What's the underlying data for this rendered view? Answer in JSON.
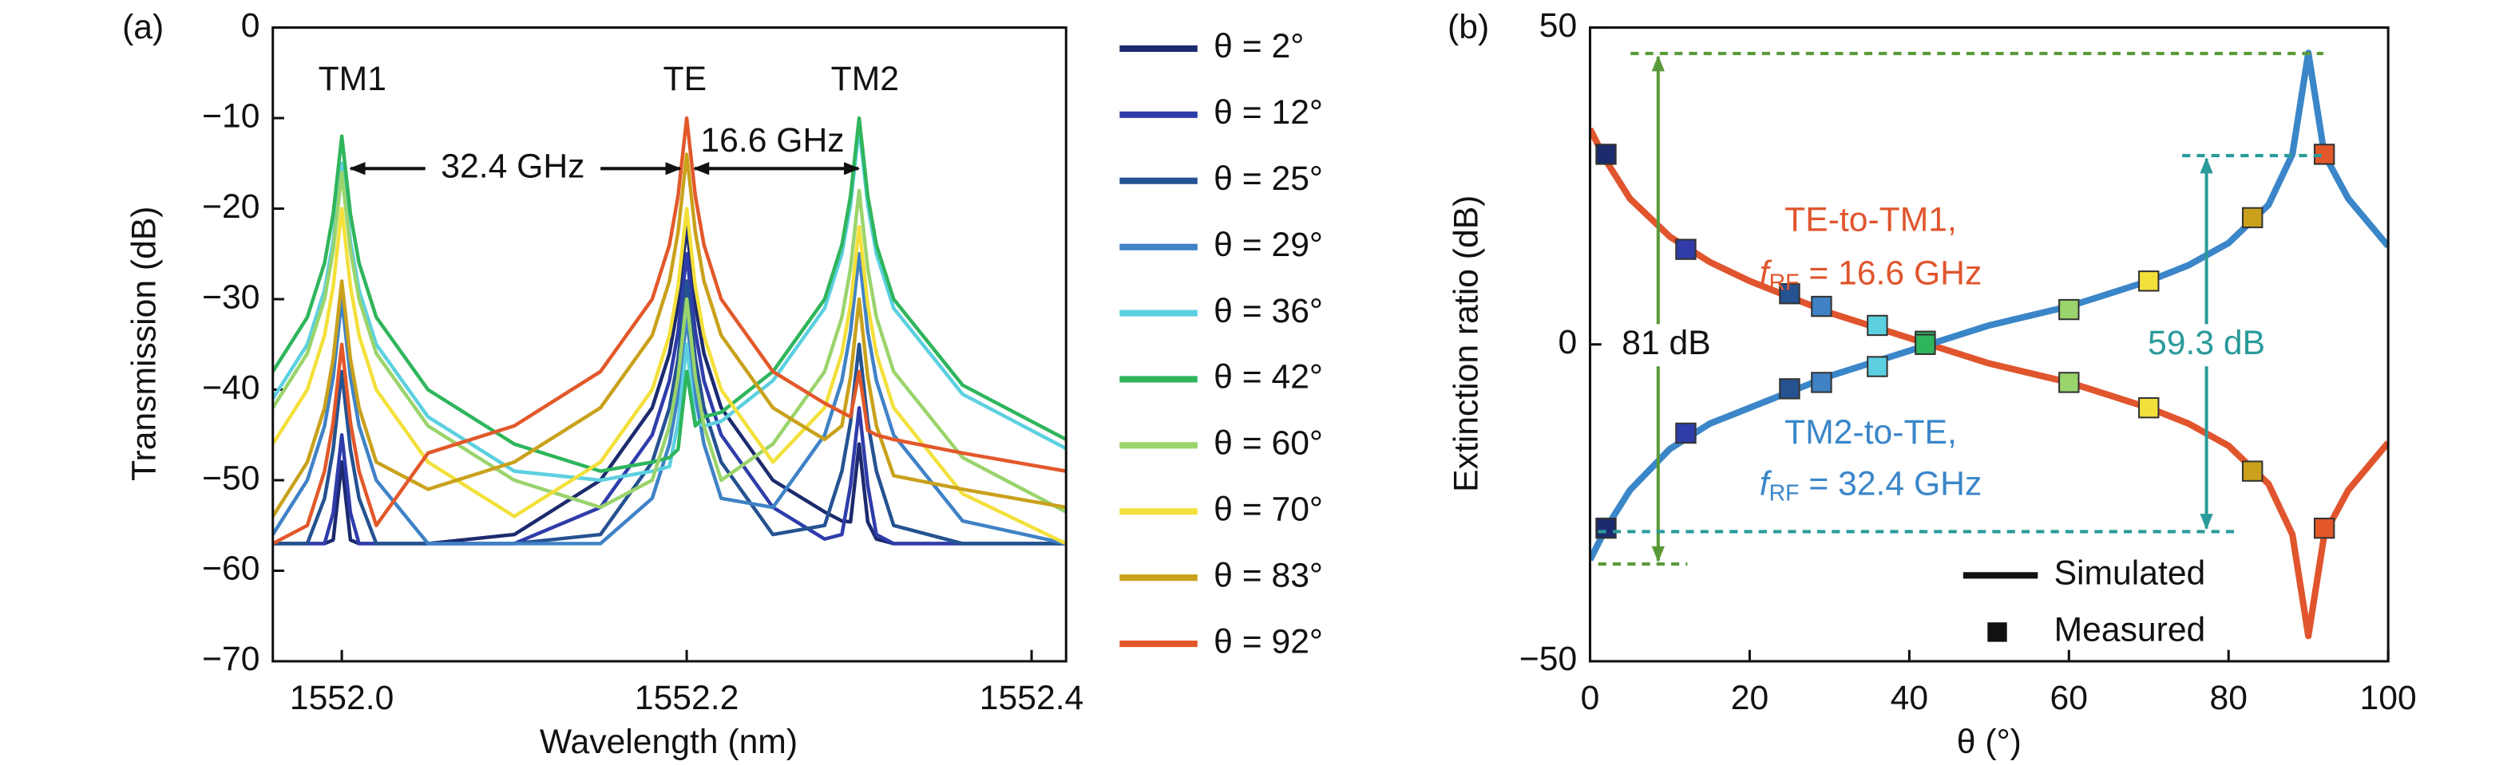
{
  "chart_data": [
    {
      "type": "line",
      "panel_label": "(a)",
      "x_label": "Wavelength (nm)",
      "y_label": "Transmission (dB)",
      "xlim": [
        1551.96,
        1552.42
      ],
      "ylim": [
        -70,
        0
      ],
      "xticks": [
        {
          "value": 1552,
          "label": "1552.0"
        },
        1552.2,
        1552.4
      ],
      "yticks": [
        0,
        {
          "value": -10,
          "label": "−10"
        },
        {
          "value": -20,
          "label": "−20"
        },
        {
          "value": -30,
          "label": "−30"
        },
        {
          "value": -40,
          "label": "−40"
        },
        {
          "value": -50,
          "label": "−50"
        },
        {
          "value": -60,
          "label": "−60"
        },
        {
          "value": -70,
          "label": "−70"
        }
      ],
      "annotations": [
        "TM1",
        "TE",
        "TM2",
        "32.4 GHz",
        "16.6 GHz"
      ],
      "x": [
        1551.96,
        1551.98,
        1551.99,
        1551.995,
        1552.0,
        1552.005,
        1552.01,
        1552.02,
        1552.05,
        1552.1,
        1552.15,
        1552.18,
        1552.19,
        1552.195,
        1552.2,
        1552.205,
        1552.21,
        1552.22,
        1552.25,
        1552.28,
        1552.29,
        1552.295,
        1552.3,
        1552.305,
        1552.31,
        1552.32,
        1552.36,
        1552.42
      ],
      "series": [
        {
          "name": "θ = 2°",
          "color": "#1c2a6e",
          "values": [
            -57,
            -57,
            -57,
            -56.6,
            -48,
            -56.6,
            -57,
            -57,
            -57,
            -56,
            -50,
            -42,
            -36,
            -30.6,
            -22,
            -30.6,
            -36,
            -42,
            -50,
            -53.5,
            -54.5,
            -54.6,
            -46,
            -54.6,
            -56.5,
            -57,
            -57,
            -57
          ]
        },
        {
          "name": "θ = 12°",
          "color": "#2f3caa",
          "values": [
            -57,
            -57,
            -57,
            -53.6,
            -45,
            -53.6,
            -57,
            -57,
            -57,
            -57,
            -53,
            -45,
            -39,
            -33.6,
            -25,
            -33.6,
            -39,
            -45,
            -53,
            -56.5,
            -56,
            -50.6,
            -42,
            -50.6,
            -56,
            -57,
            -57,
            -57
          ]
        },
        {
          "name": "θ = 25°",
          "color": "#255291",
          "values": [
            -57,
            -57,
            -52,
            -46.6,
            -38,
            -46.6,
            -52,
            -57,
            -57,
            -57,
            -56,
            -48,
            -42,
            -36.6,
            -28,
            -36.6,
            -42,
            -48,
            -56,
            -55,
            -49,
            -43.6,
            -35,
            -43.6,
            -49,
            -55,
            -57,
            -57
          ]
        },
        {
          "name": "θ = 29°",
          "color": "#3f82c6",
          "values": [
            -56,
            -50,
            -44,
            -38.6,
            -30,
            -38.6,
            -44,
            -50,
            -57,
            -57,
            -57,
            -52,
            -46,
            -40.6,
            -32,
            -40.6,
            -46,
            -52,
            -53,
            -45,
            -39,
            -33.6,
            -25,
            -33.6,
            -39,
            -45,
            -54.5,
            -57
          ]
        },
        {
          "name": "θ = 36°",
          "color": "#5cd0e0",
          "values": [
            -41,
            -35,
            -29,
            -23.6,
            -15,
            -23.6,
            -29,
            -35,
            -43,
            -49,
            -50,
            -49,
            -48.5,
            -43.6,
            -35,
            -43.6,
            -44,
            -43.5,
            -39,
            -31,
            -25,
            -19.6,
            -11,
            -19.6,
            -25,
            -31,
            -40.5,
            -46.5
          ]
        },
        {
          "name": "θ = 42°",
          "color": "#2fb55c",
          "values": [
            -38,
            -32,
            -26,
            -20.6,
            -12,
            -20.6,
            -26,
            -32,
            -40,
            -46,
            -49,
            -48,
            -47.5,
            -46.6,
            -38,
            -44,
            -43,
            -42.5,
            -38,
            -30,
            -24,
            -18.6,
            -10,
            -18.6,
            -24,
            -30,
            -39.5,
            -45.5
          ]
        },
        {
          "name": "θ = 60°",
          "color": "#9ad46c",
          "values": [
            -42,
            -36,
            -30,
            -24.6,
            -16,
            -24.6,
            -30,
            -36,
            -44,
            -50,
            -53,
            -50,
            -44,
            -38.6,
            -30,
            -38.6,
            -44,
            -50,
            -46,
            -38,
            -32,
            -26.6,
            -18,
            -26.6,
            -32,
            -38,
            -47.5,
            -53.5
          ]
        },
        {
          "name": "θ = 70°",
          "color": "#f3e03a",
          "values": [
            -46,
            -40,
            -34,
            -28.6,
            -20,
            -28.6,
            -34,
            -40,
            -48,
            -54,
            -48,
            -40,
            -34,
            -28.6,
            -20,
            -28.6,
            -34,
            -40,
            -48,
            -42,
            -36,
            -30.6,
            -22,
            -30.6,
            -36,
            -42,
            -51.5,
            -57
          ]
        },
        {
          "name": "θ = 83°",
          "color": "#c9a11c",
          "values": [
            -54,
            -48,
            -42,
            -36.6,
            -28,
            -36.6,
            -42,
            -48,
            -51,
            -48,
            -42,
            -34,
            -28,
            -22.6,
            -14,
            -22.6,
            -28,
            -34,
            -42,
            -45.5,
            -44,
            -38.6,
            -30,
            -38.6,
            -44,
            -49.5,
            -51,
            -53
          ]
        },
        {
          "name": "θ = 92°",
          "color": "#e2582a",
          "values": [
            -57,
            -55,
            -49,
            -43.6,
            -35,
            -43.6,
            -49,
            -55,
            -47,
            -44,
            -38,
            -30,
            -24,
            -18.6,
            -10,
            -18.6,
            -24,
            -30,
            -38,
            -41.5,
            -42.5,
            -43,
            -38,
            -44.5,
            -45,
            -45.5,
            -47,
            -49
          ]
        }
      ]
    },
    {
      "type": "line",
      "panel_label": "(b)",
      "x_label": "θ (°)",
      "y_label": "Extinction ratio (dB)",
      "xlim": [
        0,
        100
      ],
      "ylim": [
        -50,
        50
      ],
      "xticks": [
        0,
        20,
        40,
        60,
        80,
        100
      ],
      "yticks": [
        {
          "value": -50,
          "label": "−50"
        },
        0,
        50
      ],
      "annotations": [
        "81 dB",
        "59.3 dB"
      ],
      "simulated_label": "Simulated",
      "x": [
        0,
        2,
        5,
        10,
        15,
        20,
        25,
        30,
        35,
        40,
        45,
        50,
        55,
        60,
        65,
        70,
        75,
        80,
        85,
        88,
        90,
        92,
        95,
        100
      ],
      "series": [
        {
          "name": "TE-to-TM1,",
          "rf_label": {
            "f": "f",
            "sub": "RF",
            "rest": " = 16.6 GHz"
          },
          "color": "#e0552d",
          "values": [
            34,
            29,
            23,
            17,
            13,
            10,
            7.5,
            5,
            3,
            1,
            -1,
            -3,
            -4.5,
            -6,
            -8,
            -10,
            -12.5,
            -16,
            -22,
            -30,
            -46,
            -30,
            -23,
            -15.5
          ],
          "measured_values": [
            30,
            15,
            8,
            6,
            3,
            0.5,
            -6,
            -10,
            -20,
            -29
          ]
        },
        {
          "name": "TM2-to-TE,",
          "rf_label": {
            "f": "f",
            "sub": "RF",
            "rest": " = 32.4 GHz"
          },
          "color": "#3a86c8",
          "values": [
            -34,
            -29,
            -23,
            -16.5,
            -12.5,
            -10,
            -7.5,
            -5,
            -3,
            -1,
            1,
            3,
            4.5,
            6,
            8,
            10,
            12.5,
            16,
            22,
            30,
            46,
            30,
            23,
            15.5
          ],
          "measured_values": [
            -29,
            -14,
            -7,
            -6,
            -3.5,
            0,
            5.5,
            10,
            20,
            30
          ]
        }
      ],
      "measured": {
        "name": "Measured",
        "x": [
          2,
          12,
          25,
          29,
          36,
          42,
          60,
          70,
          83,
          92
        ],
        "colors": [
          "#1c2a6e",
          "#2f3caa",
          "#255291",
          "#3f82c6",
          "#5cd0e0",
          "#2fb55c",
          "#9ad46c",
          "#f3e03a",
          "#c9a11c",
          "#e2582a"
        ]
      }
    }
  ]
}
